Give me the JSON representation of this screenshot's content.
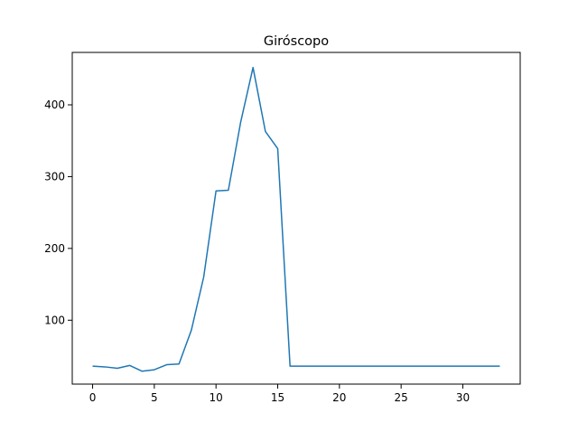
{
  "chart_data": {
    "type": "line",
    "title": "Giróscopo",
    "xlabel": "",
    "ylabel": "",
    "xlim": [
      -1.65,
      34.65
    ],
    "ylim": [
      11,
      473
    ],
    "xticks": [
      0,
      5,
      10,
      15,
      20,
      25,
      30
    ],
    "yticks": [
      100,
      200,
      300,
      400
    ],
    "grid": false,
    "series": [
      {
        "color": "#1f77b4",
        "x": [
          0,
          1,
          2,
          3,
          4,
          5,
          6,
          7,
          8,
          9,
          10,
          11,
          12,
          13,
          14,
          15,
          16,
          17,
          18,
          19,
          20,
          21,
          22,
          23,
          24,
          25,
          26,
          27,
          28,
          29,
          30,
          31,
          32,
          33
        ],
        "y": [
          36,
          35,
          33,
          37,
          29,
          31,
          38,
          39,
          86,
          160,
          280,
          281,
          376,
          452,
          363,
          339,
          36,
          36,
          36,
          36,
          36,
          36,
          36,
          36,
          36,
          36,
          36,
          36,
          36,
          36,
          36,
          36,
          36,
          36
        ]
      }
    ]
  }
}
